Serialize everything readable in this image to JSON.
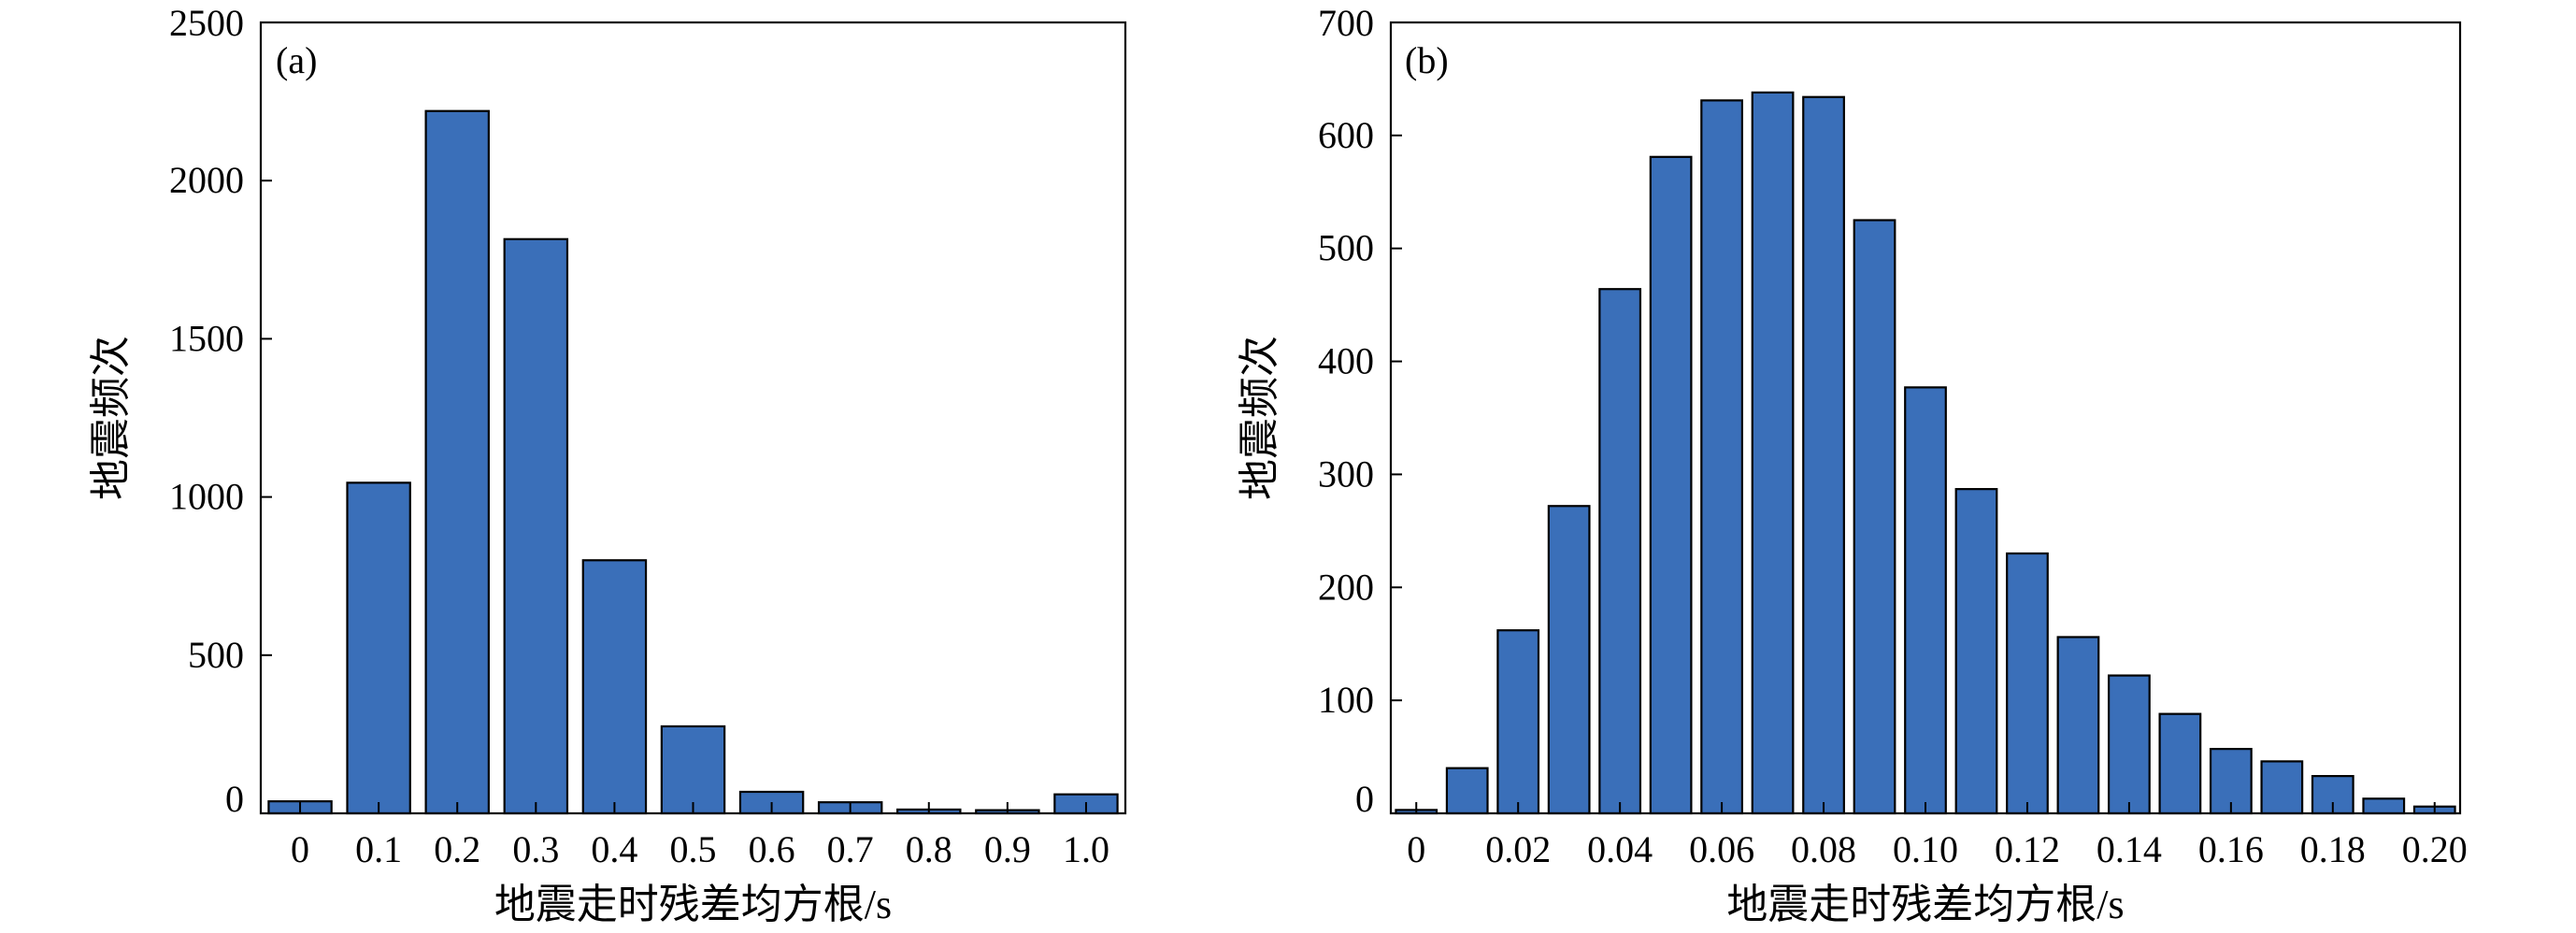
{
  "chart_data": [
    {
      "type": "bar",
      "panel_label": "(a)",
      "xlabel": "地震走时残差均方根/s",
      "ylabel": "地震频次",
      "x_tick_labels": [
        "0",
        "0.1",
        "0.2",
        "0.3",
        "0.4",
        "0.5",
        "0.6",
        "0.7",
        "0.8",
        "0.9",
        "1.0"
      ],
      "x": [
        0,
        0.1,
        0.2,
        0.3,
        0.4,
        0.5,
        0.6,
        0.7,
        0.8,
        0.9,
        1.0
      ],
      "values": [
        38,
        1045,
        2220,
        1815,
        800,
        275,
        68,
        35,
        12,
        10,
        60
      ],
      "ylim": [
        0,
        2500
      ],
      "y_ticks": [
        0,
        500,
        1000,
        1500,
        2000,
        2500
      ],
      "bar_color": "#3a6fb9",
      "grid": false
    },
    {
      "type": "bar",
      "panel_label": "(b)",
      "xlabel": "地震走时残差均方根/s",
      "ylabel": "地震频次",
      "x_tick_labels": [
        "0",
        "0.02",
        "0.04",
        "0.06",
        "0.08",
        "0.10",
        "0.12",
        "0.14",
        "0.16",
        "0.18",
        "0.20"
      ],
      "x": [
        0,
        0.01,
        0.02,
        0.03,
        0.04,
        0.05,
        0.06,
        0.07,
        0.08,
        0.09,
        0.1,
        0.11,
        0.12,
        0.13,
        0.14,
        0.15,
        0.16,
        0.17,
        0.18,
        0.19,
        0.2
      ],
      "values": [
        3,
        40,
        162,
        272,
        464,
        581,
        631,
        638,
        634,
        525,
        377,
        287,
        230,
        156,
        122,
        88,
        57,
        46,
        33,
        13,
        6
      ],
      "ylim": [
        0,
        700
      ],
      "y_ticks": [
        0,
        100,
        200,
        300,
        400,
        500,
        600,
        700
      ],
      "bar_color": "#3a6fb9",
      "grid": false
    }
  ]
}
